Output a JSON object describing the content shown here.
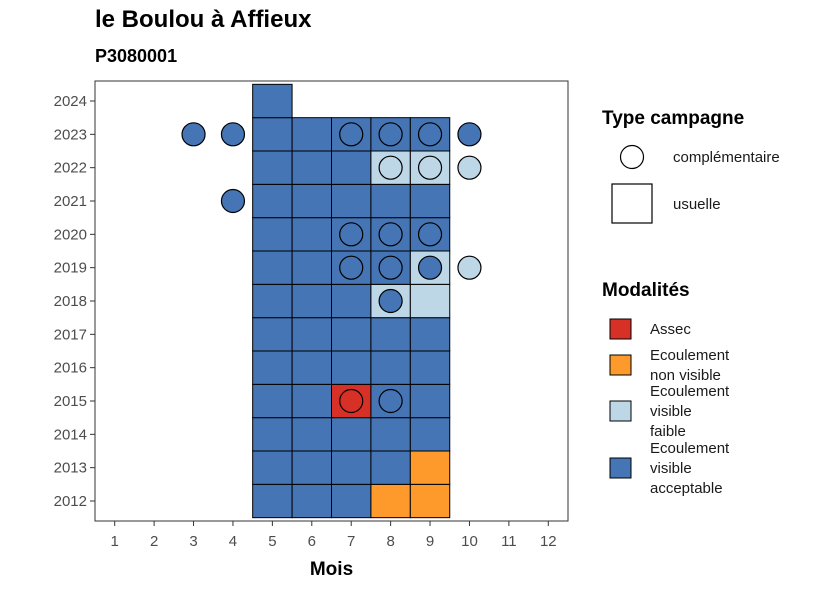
{
  "chart_data": {
    "type": "heatmap",
    "title": "le Boulou à Affieux",
    "subtitle": "P3080001",
    "xlabel": "Mois",
    "ylabel": "",
    "x_ticks": [
      1,
      2,
      3,
      4,
      5,
      6,
      7,
      8,
      9,
      10,
      11,
      12
    ],
    "y_ticks": [
      2012,
      2013,
      2014,
      2015,
      2016,
      2017,
      2018,
      2019,
      2020,
      2021,
      2022,
      2023,
      2024
    ],
    "xlim": [
      0.5,
      12.5
    ],
    "ylim": [
      2011.4,
      2024.6
    ],
    "grid": false,
    "modalites": [
      {
        "key": "assec",
        "label": "Assec",
        "color": "#d73027"
      },
      {
        "key": "nonvis",
        "label": "Ecoulement non visible",
        "color": "#fd9a2b"
      },
      {
        "key": "faible",
        "label": "Ecoulement visible faible",
        "color": "#bdd7e7"
      },
      {
        "key": "accept",
        "label": "Ecoulement visible acceptable",
        "color": "#4575b4"
      }
    ],
    "campagnes": [
      {
        "key": "complementaire",
        "label": "complémentaire",
        "shape": "circle"
      },
      {
        "key": "usuelle",
        "label": "usuelle",
        "shape": "square"
      }
    ],
    "usuelle": [
      {
        "year": 2012,
        "month": 5,
        "m": "accept"
      },
      {
        "year": 2012,
        "month": 6,
        "m": "accept"
      },
      {
        "year": 2012,
        "month": 7,
        "m": "accept"
      },
      {
        "year": 2012,
        "month": 8,
        "m": "nonvis"
      },
      {
        "year": 2012,
        "month": 9,
        "m": "nonvis"
      },
      {
        "year": 2013,
        "month": 5,
        "m": "accept"
      },
      {
        "year": 2013,
        "month": 6,
        "m": "accept"
      },
      {
        "year": 2013,
        "month": 7,
        "m": "accept"
      },
      {
        "year": 2013,
        "month": 8,
        "m": "accept"
      },
      {
        "year": 2013,
        "month": 9,
        "m": "nonvis"
      },
      {
        "year": 2014,
        "month": 5,
        "m": "accept"
      },
      {
        "year": 2014,
        "month": 6,
        "m": "accept"
      },
      {
        "year": 2014,
        "month": 7,
        "m": "accept"
      },
      {
        "year": 2014,
        "month": 8,
        "m": "accept"
      },
      {
        "year": 2014,
        "month": 9,
        "m": "accept"
      },
      {
        "year": 2015,
        "month": 5,
        "m": "accept"
      },
      {
        "year": 2015,
        "month": 6,
        "m": "accept"
      },
      {
        "year": 2015,
        "month": 7,
        "m": "assec"
      },
      {
        "year": 2015,
        "month": 8,
        "m": "accept"
      },
      {
        "year": 2015,
        "month": 9,
        "m": "accept"
      },
      {
        "year": 2016,
        "month": 5,
        "m": "accept"
      },
      {
        "year": 2016,
        "month": 6,
        "m": "accept"
      },
      {
        "year": 2016,
        "month": 7,
        "m": "accept"
      },
      {
        "year": 2016,
        "month": 8,
        "m": "accept"
      },
      {
        "year": 2016,
        "month": 9,
        "m": "accept"
      },
      {
        "year": 2017,
        "month": 5,
        "m": "accept"
      },
      {
        "year": 2017,
        "month": 6,
        "m": "accept"
      },
      {
        "year": 2017,
        "month": 7,
        "m": "accept"
      },
      {
        "year": 2017,
        "month": 8,
        "m": "accept"
      },
      {
        "year": 2017,
        "month": 9,
        "m": "accept"
      },
      {
        "year": 2018,
        "month": 5,
        "m": "accept"
      },
      {
        "year": 2018,
        "month": 6,
        "m": "accept"
      },
      {
        "year": 2018,
        "month": 7,
        "m": "accept"
      },
      {
        "year": 2018,
        "month": 8,
        "m": "faible"
      },
      {
        "year": 2018,
        "month": 9,
        "m": "faible"
      },
      {
        "year": 2019,
        "month": 5,
        "m": "accept"
      },
      {
        "year": 2019,
        "month": 6,
        "m": "accept"
      },
      {
        "year": 2019,
        "month": 7,
        "m": "accept"
      },
      {
        "year": 2019,
        "month": 8,
        "m": "accept"
      },
      {
        "year": 2019,
        "month": 9,
        "m": "faible"
      },
      {
        "year": 2020,
        "month": 5,
        "m": "accept"
      },
      {
        "year": 2020,
        "month": 6,
        "m": "accept"
      },
      {
        "year": 2020,
        "month": 7,
        "m": "accept"
      },
      {
        "year": 2020,
        "month": 8,
        "m": "accept"
      },
      {
        "year": 2020,
        "month": 9,
        "m": "accept"
      },
      {
        "year": 2021,
        "month": 5,
        "m": "accept"
      },
      {
        "year": 2021,
        "month": 6,
        "m": "accept"
      },
      {
        "year": 2021,
        "month": 7,
        "m": "accept"
      },
      {
        "year": 2021,
        "month": 8,
        "m": "accept"
      },
      {
        "year": 2021,
        "month": 9,
        "m": "accept"
      },
      {
        "year": 2022,
        "month": 5,
        "m": "accept"
      },
      {
        "year": 2022,
        "month": 6,
        "m": "accept"
      },
      {
        "year": 2022,
        "month": 7,
        "m": "accept"
      },
      {
        "year": 2022,
        "month": 8,
        "m": "faible"
      },
      {
        "year": 2022,
        "month": 9,
        "m": "faible"
      },
      {
        "year": 2023,
        "month": 5,
        "m": "accept"
      },
      {
        "year": 2023,
        "month": 6,
        "m": "accept"
      },
      {
        "year": 2023,
        "month": 7,
        "m": "accept"
      },
      {
        "year": 2023,
        "month": 8,
        "m": "accept"
      },
      {
        "year": 2023,
        "month": 9,
        "m": "accept"
      },
      {
        "year": 2024,
        "month": 5,
        "m": "accept"
      }
    ],
    "complementaire": [
      {
        "year": 2023,
        "month": 3,
        "m": "accept"
      },
      {
        "year": 2023,
        "month": 4,
        "m": "accept"
      },
      {
        "year": 2023,
        "month": 7,
        "m": "accept"
      },
      {
        "year": 2023,
        "month": 8,
        "m": "accept"
      },
      {
        "year": 2023,
        "month": 9,
        "m": "accept"
      },
      {
        "year": 2023,
        "month": 10,
        "m": "accept"
      },
      {
        "year": 2022,
        "month": 8,
        "m": "faible"
      },
      {
        "year": 2022,
        "month": 9,
        "m": "faible"
      },
      {
        "year": 2022,
        "month": 10,
        "m": "faible"
      },
      {
        "year": 2021,
        "month": 4,
        "m": "accept"
      },
      {
        "year": 2020,
        "month": 7,
        "m": "accept"
      },
      {
        "year": 2020,
        "month": 8,
        "m": "accept"
      },
      {
        "year": 2020,
        "month": 9,
        "m": "accept"
      },
      {
        "year": 2019,
        "month": 7,
        "m": "accept"
      },
      {
        "year": 2019,
        "month": 8,
        "m": "accept"
      },
      {
        "year": 2019,
        "month": 9,
        "m": "accept"
      },
      {
        "year": 2019,
        "month": 10,
        "m": "faible"
      },
      {
        "year": 2018,
        "month": 8,
        "m": "accept"
      },
      {
        "year": 2015,
        "month": 7,
        "m": "assec"
      },
      {
        "year": 2015,
        "month": 8,
        "m": "accept"
      }
    ],
    "legend": {
      "campagne_title": "Type campagne",
      "modalite_title": "Modalités",
      "placement": "right"
    }
  }
}
